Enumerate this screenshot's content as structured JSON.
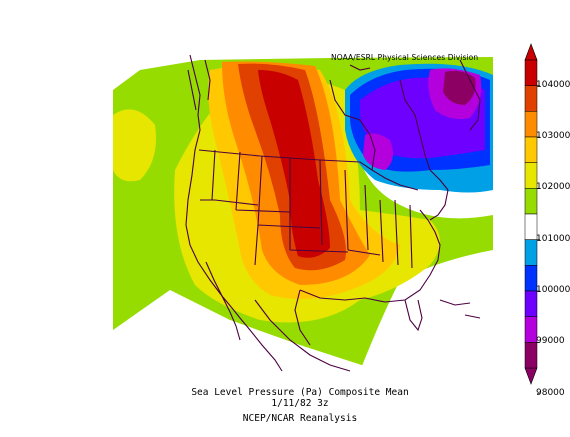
{
  "credit": "NOAA/ESRL Physical Sciences Division",
  "caption": {
    "line1": "Sea Level Pressure (Pa)   Composite Mean",
    "line2": "1/11/82 3z",
    "line3": "NCEP/NCAR Reanalysis"
  },
  "colorbar": {
    "ticks": [
      "104000",
      "103000",
      "102000",
      "101000",
      "100000",
      "99000",
      "98000"
    ],
    "colors": [
      "#c80000",
      "#e04000",
      "#ff8c00",
      "#ffc800",
      "#e6e600",
      "#96dc00",
      "#ffffff",
      "#00a0e6",
      "#0032ff",
      "#6e00ff",
      "#b400dc",
      "#8c0064"
    ]
  },
  "map_data": {
    "field": "Sea Level Pressure",
    "units": "Pa",
    "region": "North America",
    "features": [
      {
        "type": "high",
        "location": "Great Plains / Canadian Rockies",
        "approx_value": 104000
      },
      {
        "type": "low",
        "location": "Hudson Bay / Labrador",
        "approx_value": 98500
      }
    ]
  }
}
